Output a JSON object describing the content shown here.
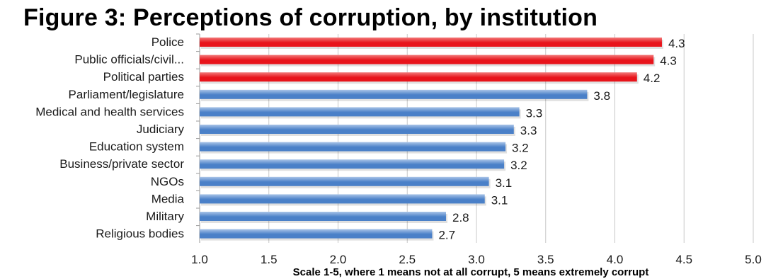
{
  "chart_data": {
    "type": "bar",
    "orientation": "horizontal",
    "title": "Figure 3: Perceptions of corruption, by institution",
    "xlabel": "Scale 1-5, where 1 means not at all corrupt, 5 means extremely corrupt",
    "ylabel": "",
    "xlim": [
      1.0,
      5.0
    ],
    "x_ticks": [
      "1.0",
      "1.5",
      "2.0",
      "2.5",
      "3.0",
      "3.5",
      "4.0",
      "4.5",
      "5.0"
    ],
    "grid": "vertical",
    "legend": "none",
    "categories": [
      "Police",
      "Public officials/civil...",
      "Political parties",
      "Parliament/legislature",
      "Medical and health services",
      "Judiciary",
      "Education system",
      "Business/private sector",
      "NGOs",
      "Media",
      "Military",
      "Religious bodies"
    ],
    "values": [
      4.34,
      4.28,
      4.16,
      3.8,
      3.31,
      3.27,
      3.21,
      3.2,
      3.09,
      3.06,
      2.78,
      2.68
    ],
    "value_labels": [
      "4.3",
      "4.3",
      "4.2",
      "3.8",
      "3.3",
      "3.3",
      "3.2",
      "3.2",
      "3.1",
      "3.1",
      "2.8",
      "2.7"
    ],
    "colors": {
      "highlight": "#e8141b",
      "highlight_light": "#f27a7a",
      "default": "#4a80c8",
      "default_light": "#a9c4e8",
      "grid": "#c8c8c8",
      "text": "#1a1a1a"
    },
    "highlight_count": 3
  }
}
